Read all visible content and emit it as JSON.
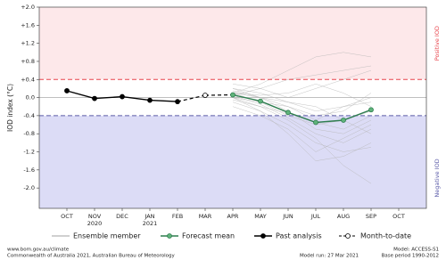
{
  "chart_data": {
    "type": "line",
    "y_label": "IOD index (°C)",
    "categories": [
      "OCT",
      "NOV",
      "DEC",
      "JAN",
      "FEB",
      "MAR",
      "APR",
      "MAY",
      "JUN",
      "JUL",
      "AUG",
      "SEP",
      "OCT"
    ],
    "year_labels": [
      null,
      "2020",
      null,
      "2021",
      null,
      null,
      null,
      null,
      null,
      null,
      null,
      null,
      null
    ],
    "ylim": [
      -2.45,
      2.0
    ],
    "yticks": [
      {
        "value": 2.0,
        "label": "+2.0"
      },
      {
        "value": 1.6,
        "label": "+1.6"
      },
      {
        "value": 1.2,
        "label": "+1.2"
      },
      {
        "value": 0.8,
        "label": "+0.8"
      },
      {
        "value": 0.4,
        "label": "+0.4"
      },
      {
        "value": 0,
        "label": "0.0"
      },
      {
        "value": -0.4,
        "label": "-0.4"
      },
      {
        "value": -0.8,
        "label": "-0.8"
      },
      {
        "value": -1.2,
        "label": "-1.2"
      },
      {
        "value": -1.6,
        "label": "-1.6"
      },
      {
        "value": -2.0,
        "label": "-2.0"
      }
    ],
    "thresholds": [
      {
        "value": 0.4,
        "label": "Positive IOD",
        "color": "#e8434b",
        "fill": "#fde8ea"
      },
      {
        "value": -0.4,
        "label": "Negative IOD",
        "color": "#5a5aa8",
        "fill": "#dcdcf6"
      }
    ],
    "ensemble": {
      "name": "Ensemble member",
      "color": "#b5b5b5",
      "members": [
        [
          null,
          null,
          null,
          null,
          null,
          null,
          0.1,
          0.3,
          0.6,
          0.9,
          1.0,
          0.9,
          null
        ],
        [
          null,
          null,
          null,
          null,
          null,
          null,
          0.05,
          0.2,
          0.4,
          0.5,
          0.6,
          0.7,
          null
        ],
        [
          null,
          null,
          null,
          null,
          null,
          null,
          0.0,
          -0.1,
          -0.2,
          -0.4,
          -0.3,
          0.1,
          null
        ],
        [
          null,
          null,
          null,
          null,
          null,
          null,
          0.1,
          0.0,
          -0.3,
          -0.7,
          -0.8,
          -0.5,
          null
        ],
        [
          null,
          null,
          null,
          null,
          null,
          null,
          -0.1,
          -0.3,
          -0.6,
          -1.0,
          -1.2,
          -1.1,
          null
        ],
        [
          null,
          null,
          null,
          null,
          null,
          null,
          0.2,
          0.1,
          -0.1,
          -0.3,
          -0.2,
          0.0,
          null
        ],
        [
          null,
          null,
          null,
          null,
          null,
          null,
          0.0,
          -0.2,
          -0.5,
          -0.9,
          -1.5,
          -1.9,
          null
        ],
        [
          null,
          null,
          null,
          null,
          null,
          null,
          0.1,
          -0.1,
          -0.4,
          -0.6,
          -0.5,
          -0.3,
          null
        ],
        [
          null,
          null,
          null,
          null,
          null,
          null,
          0.3,
          0.2,
          0.0,
          0.2,
          0.4,
          0.6,
          null
        ],
        [
          null,
          null,
          null,
          null,
          null,
          null,
          -0.2,
          -0.4,
          -0.7,
          -1.2,
          -0.9,
          -0.6,
          null
        ],
        [
          null,
          null,
          null,
          null,
          null,
          null,
          0.05,
          -0.15,
          -0.45,
          -0.8,
          -1.0,
          -0.7,
          null
        ],
        [
          null,
          null,
          null,
          null,
          null,
          null,
          0.15,
          0.0,
          -0.2,
          -0.5,
          -0.2,
          -0.1,
          null
        ],
        [
          null,
          null,
          null,
          null,
          null,
          null,
          -0.05,
          -0.2,
          -0.35,
          -0.55,
          -0.7,
          -0.4,
          null
        ],
        [
          null,
          null,
          null,
          null,
          null,
          null,
          0.1,
          0.05,
          0.1,
          0.3,
          0.1,
          -0.2,
          null
        ],
        [
          null,
          null,
          null,
          null,
          null,
          null,
          0.0,
          -0.3,
          -0.8,
          -1.4,
          -1.3,
          -1.0,
          null
        ],
        [
          null,
          null,
          null,
          null,
          null,
          null,
          0.2,
          0.0,
          -0.1,
          -0.2,
          -0.5,
          -0.8,
          null
        ]
      ]
    },
    "series": [
      {
        "name": "Forecast mean",
        "color": "#2e7d4f",
        "marker_fill": "#5fb37a",
        "values": [
          null,
          null,
          null,
          null,
          null,
          null,
          0.06,
          -0.08,
          -0.33,
          -0.55,
          -0.5,
          -0.27,
          null
        ]
      },
      {
        "name": "Past analysis",
        "color": "#000000",
        "marker_fill": "#000000",
        "values": [
          0.15,
          -0.02,
          0.02,
          -0.06,
          -0.09,
          null,
          null,
          null,
          null,
          null,
          null,
          null,
          null
        ]
      },
      {
        "name": "Month-to-date",
        "color": "#000000",
        "marker_fill": "#ffffff",
        "values": [
          null,
          null,
          null,
          null,
          null,
          0.05,
          null,
          null,
          null,
          null,
          null,
          null,
          null
        ]
      }
    ],
    "footer": {
      "url": "www.bom.gov.au/climate",
      "copyright": "Commonwealth of Australia 2021, Australian Bureau of Meteorology",
      "model": "Model: ACCESS-S1",
      "model_run": "Model run: 27 Mar 2021",
      "base_period": "Base period 1990-2012"
    }
  }
}
